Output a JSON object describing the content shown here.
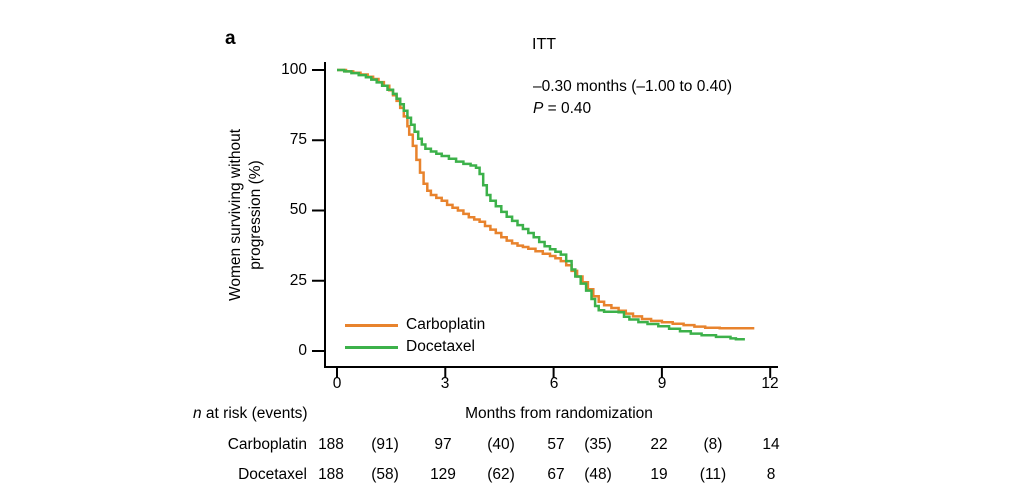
{
  "panel_label": "a",
  "chart_title": "ITT",
  "annotation": {
    "line1": "–0.30 months (–1.00 to 0.40)",
    "p_italic": "P",
    "p_rest": " = 0.40"
  },
  "y_axis": {
    "label_line1": "Women surviving without",
    "label_line2": "progression (%)"
  },
  "x_axis": {
    "label": "Months from randomization"
  },
  "legend": [
    {
      "label": "Carboplatin",
      "color": "#E8832D"
    },
    {
      "label": "Docetaxel",
      "color": "#3CB14A"
    }
  ],
  "chart_data": {
    "type": "line",
    "subtype": "kaplan-meier-step",
    "title": "ITT",
    "xlabel": "Months from randomization",
    "ylabel": "Women surviving without progression (%)",
    "xlim": [
      0,
      12
    ],
    "ylim": [
      0,
      100
    ],
    "x_ticks": [
      0,
      3,
      6,
      9,
      12
    ],
    "y_ticks": [
      0,
      25,
      50,
      75,
      100
    ],
    "x_tick_labels": [
      "0",
      "3",
      "6",
      "9",
      "12"
    ],
    "y_tick_labels_top_down": [
      "100",
      "75",
      "50",
      "25",
      "0"
    ],
    "grid": false,
    "legend_position": "lower-left-inside",
    "series": [
      {
        "name": "Carboplatin",
        "color": "#E8832D",
        "points": [
          [
            0,
            100
          ],
          [
            0.25,
            99.5
          ],
          [
            0.45,
            99
          ],
          [
            0.65,
            98.4
          ],
          [
            0.85,
            97.6
          ],
          [
            1.0,
            96.8
          ],
          [
            1.15,
            95.7
          ],
          [
            1.3,
            94.4
          ],
          [
            1.45,
            92.8
          ],
          [
            1.55,
            91
          ],
          [
            1.65,
            89
          ],
          [
            1.75,
            86.5
          ],
          [
            1.85,
            83.5
          ],
          [
            1.95,
            80
          ],
          [
            2.0,
            77
          ],
          [
            2.1,
            73
          ],
          [
            2.2,
            68
          ],
          [
            2.3,
            63.5
          ],
          [
            2.4,
            59.5
          ],
          [
            2.5,
            57
          ],
          [
            2.6,
            55.5
          ],
          [
            2.75,
            54.5
          ],
          [
            2.9,
            53.5
          ],
          [
            3.05,
            52
          ],
          [
            3.2,
            51
          ],
          [
            3.35,
            50
          ],
          [
            3.5,
            48.8
          ],
          [
            3.65,
            47.6
          ],
          [
            3.8,
            46.8
          ],
          [
            3.95,
            46
          ],
          [
            4.1,
            44.5
          ],
          [
            4.25,
            43.2
          ],
          [
            4.4,
            42
          ],
          [
            4.55,
            40.5
          ],
          [
            4.7,
            39.3
          ],
          [
            4.85,
            38.3
          ],
          [
            5.0,
            37.5
          ],
          [
            5.15,
            37
          ],
          [
            5.3,
            36.4
          ],
          [
            5.5,
            35.5
          ],
          [
            5.7,
            34.6
          ],
          [
            5.9,
            33.8
          ],
          [
            6.05,
            33
          ],
          [
            6.2,
            32
          ],
          [
            6.35,
            30.5
          ],
          [
            6.5,
            28.5
          ],
          [
            6.65,
            26.5
          ],
          [
            6.8,
            24.5
          ],
          [
            6.95,
            22
          ],
          [
            7.1,
            19.5
          ],
          [
            7.25,
            17.5
          ],
          [
            7.4,
            16.3
          ],
          [
            7.6,
            15.3
          ],
          [
            7.8,
            14.3
          ],
          [
            8.0,
            13.3
          ],
          [
            8.2,
            12.3
          ],
          [
            8.45,
            11.4
          ],
          [
            8.7,
            10.7
          ],
          [
            9.0,
            10.2
          ],
          [
            9.3,
            9.7
          ],
          [
            9.6,
            9.2
          ],
          [
            9.9,
            8.7
          ],
          [
            10.2,
            8.3
          ],
          [
            10.6,
            8.1
          ],
          [
            11.56,
            8.1
          ]
        ]
      },
      {
        "name": "Docetaxel",
        "color": "#3CB14A",
        "points": [
          [
            0,
            100
          ],
          [
            0.2,
            99.5
          ],
          [
            0.4,
            98.9
          ],
          [
            0.6,
            98.2
          ],
          [
            0.8,
            97.4
          ],
          [
            0.95,
            96.6
          ],
          [
            1.1,
            95.6
          ],
          [
            1.25,
            94.4
          ],
          [
            1.4,
            93
          ],
          [
            1.55,
            91.5
          ],
          [
            1.65,
            89.8
          ],
          [
            1.75,
            87.8
          ],
          [
            1.85,
            85.5
          ],
          [
            1.95,
            83
          ],
          [
            2.05,
            80.5
          ],
          [
            2.15,
            78
          ],
          [
            2.25,
            75.5
          ],
          [
            2.35,
            73.5
          ],
          [
            2.45,
            72
          ],
          [
            2.6,
            71
          ],
          [
            2.75,
            70.2
          ],
          [
            2.9,
            69.4
          ],
          [
            3.1,
            68.4
          ],
          [
            3.3,
            67.4
          ],
          [
            3.5,
            66.6
          ],
          [
            3.7,
            66
          ],
          [
            3.85,
            65.2
          ],
          [
            3.95,
            63
          ],
          [
            4.05,
            59
          ],
          [
            4.15,
            55.5
          ],
          [
            4.25,
            53.5
          ],
          [
            4.4,
            51.5
          ],
          [
            4.55,
            49.5
          ],
          [
            4.7,
            47.8
          ],
          [
            4.85,
            46.3
          ],
          [
            5.0,
            44.8
          ],
          [
            5.15,
            43.4
          ],
          [
            5.3,
            42
          ],
          [
            5.45,
            40.5
          ],
          [
            5.6,
            38.8
          ],
          [
            5.75,
            37.3
          ],
          [
            5.9,
            36.2
          ],
          [
            6.05,
            35.3
          ],
          [
            6.2,
            34.3
          ],
          [
            6.35,
            32
          ],
          [
            6.5,
            29
          ],
          [
            6.6,
            26.5
          ],
          [
            6.75,
            24
          ],
          [
            6.9,
            21.5
          ],
          [
            7.05,
            18.5
          ],
          [
            7.15,
            16
          ],
          [
            7.25,
            14.5
          ],
          [
            7.4,
            14
          ],
          [
            7.8,
            13.8
          ],
          [
            7.95,
            12.2
          ],
          [
            8.1,
            11.2
          ],
          [
            8.35,
            10.3
          ],
          [
            8.6,
            9.6
          ],
          [
            8.9,
            8.8
          ],
          [
            9.2,
            7.9
          ],
          [
            9.5,
            7
          ],
          [
            9.8,
            6.2
          ],
          [
            10.1,
            5.6
          ],
          [
            10.5,
            5
          ],
          [
            10.9,
            4.5
          ],
          [
            11.05,
            4.2
          ],
          [
            11.3,
            4.2
          ]
        ]
      }
    ],
    "annotation_text": [
      "–0.30 months (–1.00 to 0.40)",
      "P = 0.40"
    ]
  },
  "risk_table": {
    "header_n_italic": "n",
    "header_rest": " at risk (events)",
    "rows": [
      {
        "label": "Carboplatin",
        "values": [
          "188",
          "(91)",
          "97",
          "(40)",
          "57",
          "(35)",
          "22",
          "(8)",
          "14"
        ]
      },
      {
        "label": "Docetaxel",
        "values": [
          "188",
          "(58)",
          "129",
          "(62)",
          "67",
          "(48)",
          "19",
          "(11)",
          "8"
        ]
      }
    ]
  }
}
